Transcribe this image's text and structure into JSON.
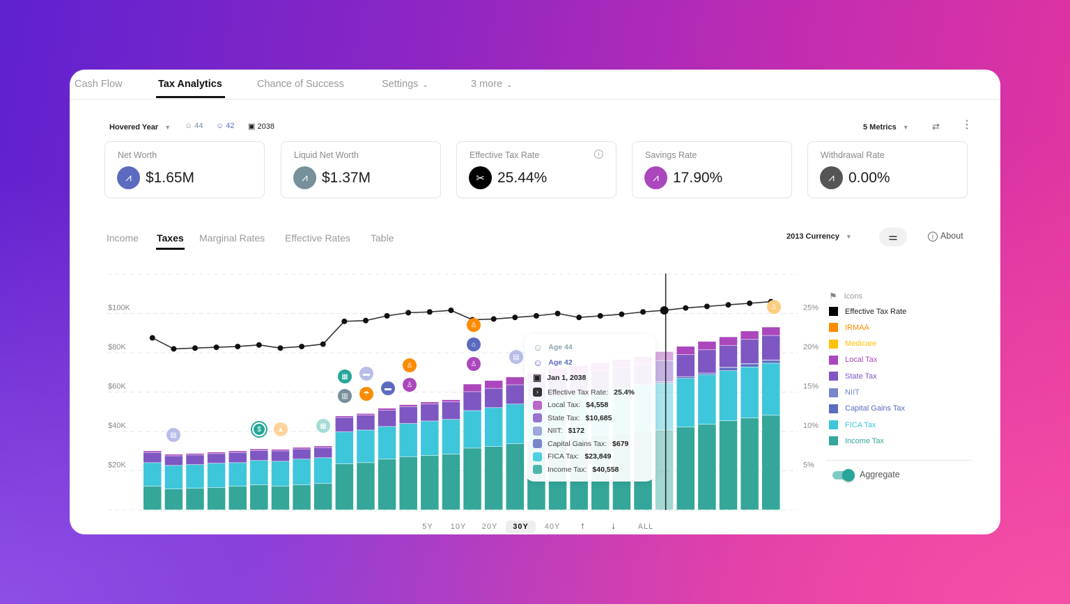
{
  "nav": {
    "tabs": [
      {
        "label": "Cash Flow"
      },
      {
        "label": "Tax Analytics",
        "active": true
      },
      {
        "label": "Chance of Success"
      },
      {
        "label": "Settings",
        "dropdown": true
      },
      {
        "label": "3 more",
        "dropdown": true
      }
    ]
  },
  "controls": {
    "hovered_year_label": "Hovered Year",
    "age_1": "44",
    "age_2": "42",
    "year": "2038",
    "metrics_label": "5 Metrics"
  },
  "metrics": [
    {
      "label": "Net Worth",
      "value": "$1.65M",
      "color": "#5c6bc0"
    },
    {
      "label": "Liquid Net Worth",
      "value": "$1.37M",
      "color": "#78909c"
    },
    {
      "label": "Effective Tax Rate",
      "value": "25.44%",
      "color": "#000000"
    },
    {
      "label": "Savings Rate",
      "value": "17.90%",
      "color": "#ab47bc"
    },
    {
      "label": "Withdrawal Rate",
      "value": "0.00%",
      "color": "#555555"
    }
  ],
  "subtabs": [
    {
      "label": "Income"
    },
    {
      "label": "Taxes",
      "active": true
    },
    {
      "label": "Marginal Rates"
    },
    {
      "label": "Effective Rates"
    },
    {
      "label": "Table"
    }
  ],
  "chart_controls": {
    "currency": "2013 Currency",
    "about": "About"
  },
  "ranges": [
    "5Y",
    "10Y",
    "20Y",
    "30Y",
    "40Y",
    "ALL"
  ],
  "active_range": "30Y",
  "tooltip": {
    "age_1": "Age 44",
    "age_2": "Age 42",
    "date": "Jan 1, 2038",
    "rows": [
      {
        "label": "Effective Tax Rate:",
        "value": "25.4%",
        "color": "#333333"
      },
      {
        "label": "Local Tax:",
        "value": "$4,558",
        "color": "#ba68c8"
      },
      {
        "label": "State Tax:",
        "value": "$10,685",
        "color": "#9575cd"
      },
      {
        "label": "NIIT:",
        "value": "$172",
        "color": "#9fa8da"
      },
      {
        "label": "Capital Gains Tax:",
        "value": "$679",
        "color": "#7986cb"
      },
      {
        "label": "FICA Tax:",
        "value": "$23,849",
        "color": "#4dd0e1"
      },
      {
        "label": "Income Tax:",
        "value": "$40,558",
        "color": "#4db6ac"
      }
    ]
  },
  "legend": {
    "icons_label": "Icons",
    "items": [
      {
        "label": "Effective Tax Rate",
        "color": "#000000",
        "text_color": "#222222"
      },
      {
        "label": "IRMAA",
        "color": "#fb8c00",
        "text_color": "#fb8c00"
      },
      {
        "label": "Medicare",
        "color": "#ffc107",
        "text_color": "#ffc107"
      },
      {
        "label": "Local Tax",
        "color": "#ab47bc",
        "text_color": "#ab47bc"
      },
      {
        "label": "State Tax",
        "color": "#7e57c2",
        "text_color": "#7e57c2"
      },
      {
        "label": "NIIT",
        "color": "#7986cb",
        "text_color": "#7986cb"
      },
      {
        "label": "Capital Gains Tax",
        "color": "#5c6bc0",
        "text_color": "#5c6bc0"
      },
      {
        "label": "FICA Tax",
        "color": "#3ec6da",
        "text_color": "#3ec6da"
      },
      {
        "label": "Income Tax",
        "color": "#34a69a",
        "text_color": "#34a69a"
      }
    ],
    "aggregate_label": "Aggregate",
    "aggregate_on": true
  },
  "chart_data": {
    "type": "bar",
    "stacked": true,
    "ylim": [
      0,
      120000
    ],
    "y_ticks": [
      "$20K",
      "$40K",
      "$60K",
      "$80K",
      "$100K"
    ],
    "y2lim": [
      0,
      30
    ],
    "y2_ticks": [
      "5%",
      "10%",
      "15%",
      "20%",
      "25%"
    ],
    "grid": true,
    "legend_placement": "right",
    "hovered_index": 24,
    "series": [
      {
        "name": "Income Tax",
        "color": "#34a69a",
        "values": [
          12000,
          10600,
          11000,
          11300,
          12000,
          12700,
          12000,
          12700,
          13400,
          23400,
          24000,
          25800,
          27000,
          27600,
          28300,
          31400,
          32200,
          33600,
          35000,
          36000,
          37000,
          38000,
          39000,
          39800,
          40558,
          42100,
          43500,
          45300,
          46700,
          48100
        ]
      },
      {
        "name": "FICA Tax",
        "color": "#3ec6da",
        "values": [
          12000,
          12000,
          12000,
          12400,
          12000,
          12400,
          12700,
          13100,
          13100,
          16300,
          16600,
          16600,
          16900,
          17600,
          17700,
          19100,
          19800,
          20200,
          20800,
          21500,
          22000,
          22500,
          23000,
          23400,
          23849,
          24800,
          25200,
          25500,
          26000,
          26500
        ]
      },
      {
        "name": "Capital Gains Tax",
        "color": "#5c6bc0",
        "values": [
          0,
          0,
          0,
          0,
          0,
          0,
          0,
          0,
          0,
          0,
          0,
          0,
          0,
          0,
          0,
          0,
          0,
          0,
          0,
          0,
          0,
          0,
          0,
          500,
          679,
          700,
          700,
          1400,
          1400,
          1400
        ]
      },
      {
        "name": "NIIT",
        "color": "#7986cb",
        "values": [
          0,
          0,
          0,
          0,
          0,
          0,
          0,
          0,
          0,
          0,
          0,
          0,
          0,
          0,
          0,
          0,
          0,
          0,
          0,
          0,
          0,
          0,
          0,
          150,
          172,
          200,
          200,
          300,
          300,
          300
        ]
      },
      {
        "name": "State Tax",
        "color": "#7e57c2",
        "values": [
          5200,
          4900,
          4900,
          4900,
          5200,
          5100,
          5300,
          5200,
          5200,
          7300,
          7600,
          8300,
          8600,
          8700,
          9000,
          9600,
          9800,
          9800,
          10100,
          10400,
          10400,
          10400,
          10400,
          10150,
          10685,
          11200,
          11800,
          11200,
          12300,
          12400
        ]
      },
      {
        "name": "Local Tax",
        "color": "#ab47bc",
        "values": [
          800,
          800,
          800,
          800,
          800,
          800,
          800,
          800,
          800,
          800,
          800,
          1000,
          1000,
          1000,
          1000,
          3900,
          4000,
          4000,
          4100,
          4100,
          4100,
          4100,
          4100,
          4000,
          4558,
          4200,
          4300,
          4300,
          4300,
          4300
        ]
      },
      {
        "name": "Effective Tax Rate",
        "type": "line",
        "axis": "right",
        "color": "#000000",
        "values": [
          21.9,
          20.5,
          20.6,
          20.7,
          20.8,
          21.0,
          20.6,
          20.8,
          21.1,
          24.0,
          24.1,
          24.7,
          25.1,
          25.2,
          25.4,
          24.2,
          24.3,
          24.5,
          24.7,
          25.0,
          24.5,
          24.7,
          24.9,
          25.2,
          25.4,
          25.7,
          25.9,
          26.1,
          26.3,
          26.5
        ]
      }
    ]
  }
}
